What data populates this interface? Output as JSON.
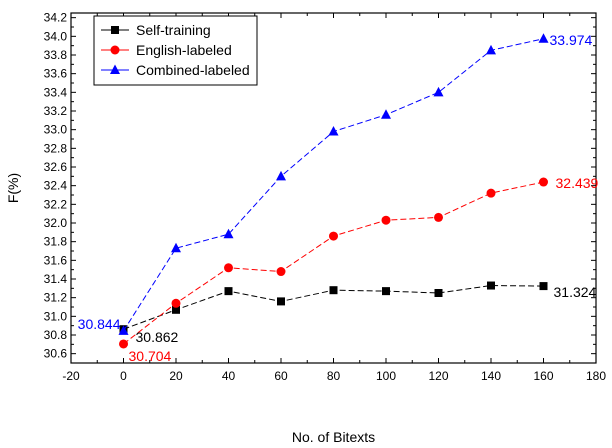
{
  "chart_data": {
    "type": "line",
    "xlabel": "No. of Bitexts",
    "ylabel": "F(%)",
    "xlim": [
      -20,
      180
    ],
    "ylim": [
      30.5,
      34.25
    ],
    "xticks": [
      -20,
      0,
      20,
      40,
      60,
      80,
      100,
      120,
      140,
      160,
      180
    ],
    "yticks": [
      30.6,
      30.8,
      31.0,
      31.2,
      31.4,
      31.6,
      31.8,
      32.0,
      32.2,
      32.4,
      32.6,
      32.8,
      33.0,
      33.2,
      33.4,
      33.6,
      33.8,
      34.0,
      34.2
    ],
    "grid": false,
    "legend_position": "top-left",
    "x": [
      0,
      20,
      40,
      60,
      80,
      100,
      120,
      140,
      160
    ],
    "series": [
      {
        "name": "Self-training",
        "color": "#000000",
        "marker": "square",
        "values": [
          30.862,
          31.07,
          31.27,
          31.16,
          31.28,
          31.27,
          31.25,
          31.33,
          31.324
        ]
      },
      {
        "name": "English-labeled",
        "color": "#ff0000",
        "marker": "circle",
        "values": [
          30.704,
          31.14,
          31.52,
          31.48,
          31.86,
          32.03,
          32.06,
          32.32,
          32.439
        ]
      },
      {
        "name": "Combined-labeled",
        "color": "#0000ff",
        "marker": "triangle",
        "values": [
          30.844,
          31.73,
          31.88,
          32.5,
          32.98,
          33.16,
          33.4,
          33.85,
          33.974
        ]
      }
    ],
    "annotations": [
      {
        "text": "30.844",
        "series": 2,
        "index": 0,
        "color": "#0000ff"
      },
      {
        "text": "30.862",
        "series": 0,
        "index": 0,
        "color": "#000000"
      },
      {
        "text": "30.704",
        "series": 1,
        "index": 0,
        "color": "#ff0000"
      },
      {
        "text": "31.324",
        "series": 0,
        "index": 8,
        "color": "#000000"
      },
      {
        "text": "32.439",
        "series": 1,
        "index": 8,
        "color": "#ff0000"
      },
      {
        "text": "33.974",
        "series": 2,
        "index": 8,
        "color": "#0000ff"
      }
    ]
  }
}
